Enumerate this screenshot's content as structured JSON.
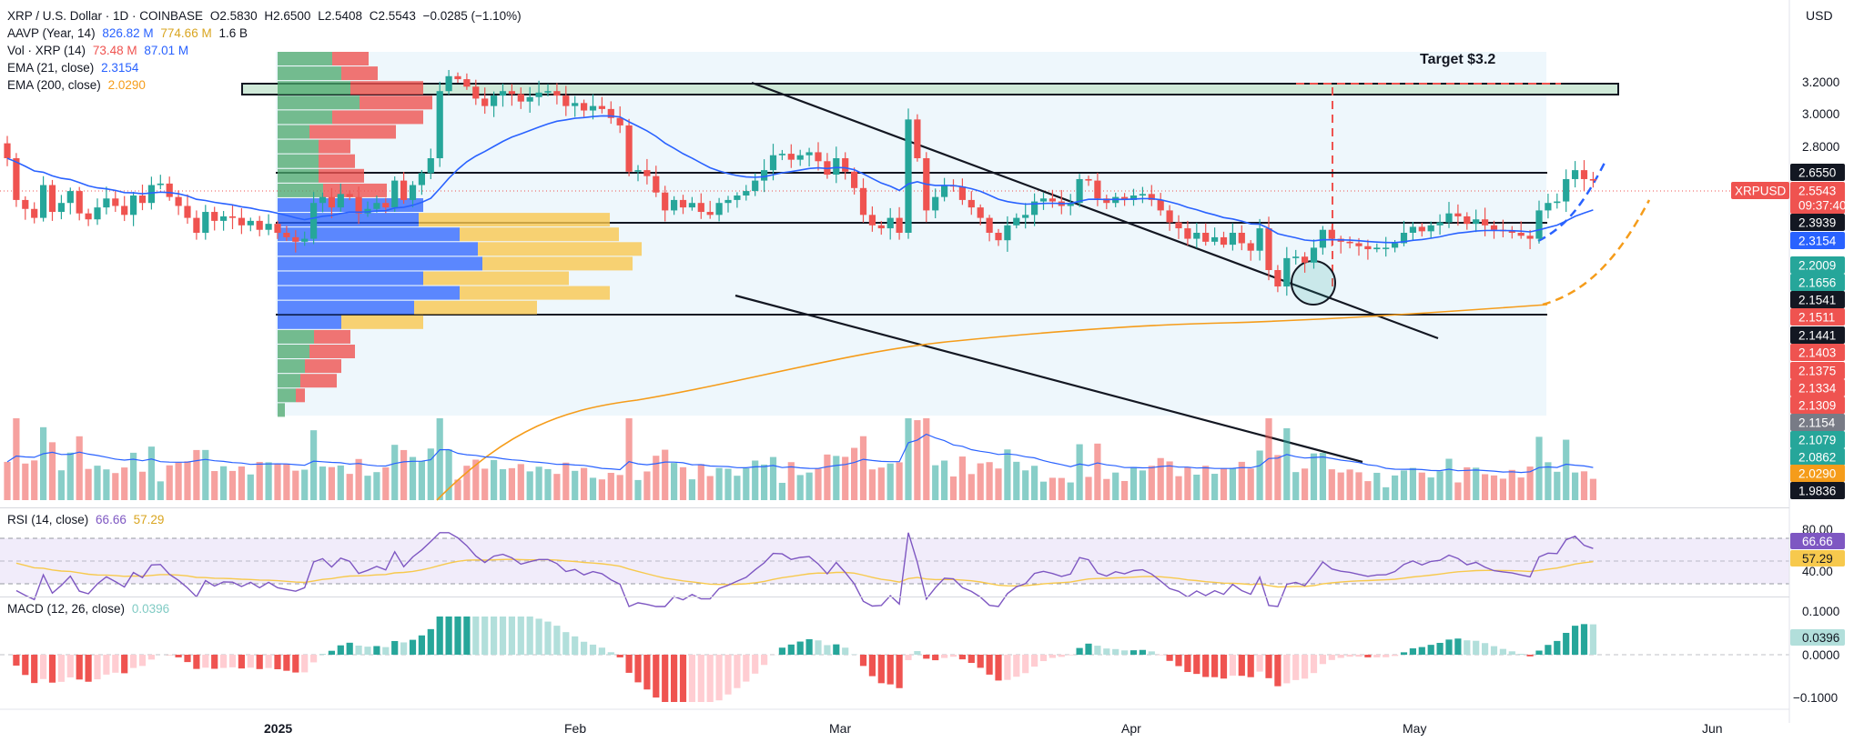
{
  "header": {
    "symbol_line": "XRP / U.S. Dollar · 1D · COINBASE",
    "open": "O2.5830",
    "high": "H2.6500",
    "low": "L2.5408",
    "close": "C2.5543",
    "change": "−0.0285 (−1.10%)",
    "currency": "USD"
  },
  "indicators": {
    "aavp": {
      "label": "AAVP (Year, 14)",
      "v1": "826.82 M",
      "v2": "774.66 M",
      "v3": "1.6 B"
    },
    "vol": {
      "label": "Vol · XRP (14)",
      "v1": "73.48 M",
      "v2": "87.01 M"
    },
    "ema21": {
      "label": "EMA (21, close)",
      "value": "2.3154"
    },
    "ema200": {
      "label": "EMA (200, close)",
      "value": "2.0290"
    },
    "rsi": {
      "label": "RSI (14, close)",
      "v1": "66.66",
      "v2": "57.29"
    },
    "macd": {
      "label": "MACD (12, 26, close)",
      "value": "0.0396"
    }
  },
  "colors": {
    "up": "#26a69a",
    "down": "#ef5350",
    "ema21": "#2962ff",
    "ema200": "#f59c1a",
    "rsi": "#7e57c2",
    "rsi_ma": "#f7c94d",
    "profile_blue": "#2962ff",
    "profile_yellow": "#f9c74f"
  },
  "annotations": {
    "target_label": "Target $3.2"
  },
  "chart_data": {
    "type": "candlestick",
    "x_ticks": [
      "2025",
      "Feb",
      "Mar",
      "Apr",
      "May",
      "Jun"
    ],
    "price_axis": {
      "ticks": [
        "3.2000",
        "3.0000",
        "2.8000"
      ],
      "range": [
        1.75,
        3.42
      ],
      "price_labels": [
        {
          "text": "2.6550",
          "bg": "#131722",
          "fg": "#ffffff"
        },
        {
          "text": "XRPUSD",
          "bg": "#ef5350",
          "fg": "#ffffff"
        },
        {
          "text": "2.5543",
          "bg": "#ef5350",
          "fg": "#ffffff"
        },
        {
          "text": "09:37:40",
          "bg": "#ef5350",
          "fg": "#ffffff"
        },
        {
          "text": "2.3939",
          "bg": "#131722",
          "fg": "#ffffff"
        },
        {
          "text": "2.3154",
          "bg": "#2962ff",
          "fg": "#ffffff"
        },
        {
          "text": "2.2009",
          "bg": "#26a69a",
          "fg": "#ffffff"
        },
        {
          "text": "2.1656",
          "bg": "#26a69a",
          "fg": "#ffffff"
        },
        {
          "text": "2.1541",
          "bg": "#131722",
          "fg": "#ffffff"
        },
        {
          "text": "2.1511",
          "bg": "#ef5350",
          "fg": "#ffffff"
        },
        {
          "text": "2.1441",
          "bg": "#131722",
          "fg": "#ffffff"
        },
        {
          "text": "2.1403",
          "bg": "#ef5350",
          "fg": "#ffffff"
        },
        {
          "text": "2.1375",
          "bg": "#ef5350",
          "fg": "#ffffff"
        },
        {
          "text": "2.1334",
          "bg": "#ef5350",
          "fg": "#ffffff"
        },
        {
          "text": "2.1309",
          "bg": "#ef5350",
          "fg": "#ffffff"
        },
        {
          "text": "2.1154",
          "bg": "#787b86",
          "fg": "#ffffff"
        },
        {
          "text": "2.1079",
          "bg": "#26a69a",
          "fg": "#ffffff"
        },
        {
          "text": "2.0862",
          "bg": "#26a69a",
          "fg": "#ffffff"
        },
        {
          "text": "2.0290",
          "bg": "#f59c1a",
          "fg": "#ffffff"
        },
        {
          "text": "1.9836",
          "bg": "#131722",
          "fg": "#ffffff"
        }
      ]
    },
    "rsi_axis": {
      "ticks": [
        "80.00",
        "40.00"
      ],
      "value": "66.66",
      "ma": "57.29"
    },
    "macd_axis": {
      "ticks": [
        "0.1000",
        "0.0000",
        "−0.1000"
      ],
      "value": "0.0396"
    },
    "closes": [
      2.7,
      2.42,
      2.36,
      2.3,
      2.52,
      2.34,
      2.4,
      2.48,
      2.33,
      2.29,
      2.37,
      2.43,
      2.38,
      2.32,
      2.45,
      2.4,
      2.52,
      2.53,
      2.44,
      2.38,
      2.3,
      2.2,
      2.34,
      2.28,
      2.31,
      2.3,
      2.25,
      2.28,
      2.22,
      2.26,
      2.2,
      2.17,
      2.14,
      2.16,
      2.4,
      2.44,
      2.37,
      2.46,
      2.44,
      2.33,
      2.36,
      2.4,
      2.37,
      2.55,
      2.42,
      2.52,
      2.6,
      2.7,
      3.15,
      3.25,
      3.23,
      3.18,
      3.1,
      3.05,
      3.12,
      3.15,
      3.13,
      3.08,
      3.11,
      3.14,
      3.15,
      3.12,
      3.05,
      3.07,
      3.02,
      3.05,
      3.03,
      2.97,
      2.92,
      2.61,
      2.62,
      2.58,
      2.47,
      2.35,
      2.42,
      2.37,
      2.4,
      2.34,
      2.32,
      2.4,
      2.42,
      2.45,
      2.48,
      2.55,
      2.62,
      2.72,
      2.73,
      2.69,
      2.72,
      2.74,
      2.68,
      2.59,
      2.7,
      2.61,
      2.5,
      2.32,
      2.25,
      2.23,
      2.3,
      2.2,
      2.96,
      2.7,
      2.35,
      2.44,
      2.52,
      2.51,
      2.42,
      2.37,
      2.3,
      2.2,
      2.15,
      2.25,
      2.3,
      2.32,
      2.41,
      2.43,
      2.41,
      2.38,
      2.4,
      2.56,
      2.55,
      2.43,
      2.4,
      2.44,
      2.42,
      2.45,
      2.46,
      2.42,
      2.35,
      2.27,
      2.23,
      2.16,
      2.2,
      2.14,
      2.17,
      2.12,
      2.2,
      2.13,
      2.08,
      2.23,
      1.95,
      1.84,
      2.03,
      2.04,
      2.0,
      2.1,
      2.22,
      2.16,
      2.14,
      2.13,
      2.11,
      2.09,
      2.1,
      2.1,
      2.13,
      2.2,
      2.24,
      2.21,
      2.25,
      2.27,
      2.33,
      2.31,
      2.26,
      2.29,
      2.25,
      2.22,
      2.21,
      2.2,
      2.18,
      2.16,
      2.35,
      2.4,
      2.41,
      2.56,
      2.62,
      2.56,
      2.55
    ]
  }
}
